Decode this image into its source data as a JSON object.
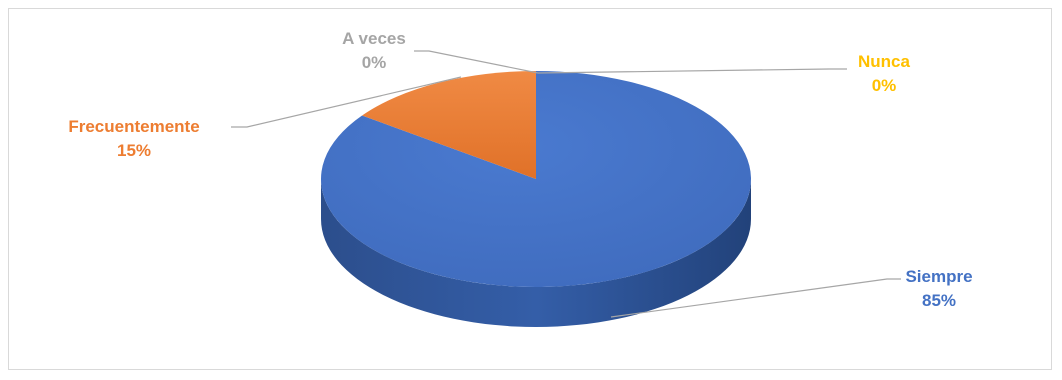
{
  "chart_data": {
    "type": "pie",
    "style": "3d",
    "title": "",
    "slices": [
      {
        "name": "Siempre",
        "value": 85,
        "label": "85%",
        "color": "#4472C4"
      },
      {
        "name": "Frecuentemente",
        "value": 15,
        "label": "15%",
        "color": "#ED7D31"
      },
      {
        "name": "A veces",
        "value": 0,
        "label": "0%",
        "color": "#A5A5A5"
      },
      {
        "name": "Nunca",
        "value": 0,
        "label": "0%",
        "color": "#FFC000"
      }
    ],
    "legend": "none",
    "data_labels": "outside with leader lines"
  }
}
